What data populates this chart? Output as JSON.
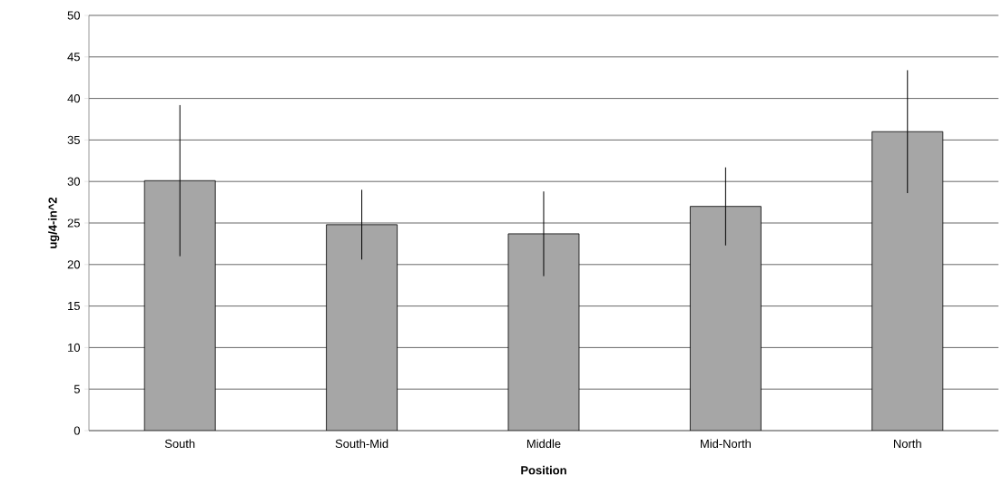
{
  "chart_data": {
    "type": "bar",
    "xlabel": "Position",
    "ylabel": "ug/4-in^2",
    "categories": [
      "South",
      "South-Mid",
      "Middle",
      "Mid-North",
      "North"
    ],
    "values": [
      30.1,
      24.8,
      23.7,
      27.0,
      36.0
    ],
    "errors": [
      9.1,
      4.2,
      5.1,
      4.7,
      7.4
    ],
    "color": "#a6a6a6",
    "ylim": [
      0,
      50
    ],
    "yticks": [
      0,
      5,
      10,
      15,
      20,
      25,
      30,
      35,
      40,
      45,
      50
    ],
    "grid": "y"
  }
}
